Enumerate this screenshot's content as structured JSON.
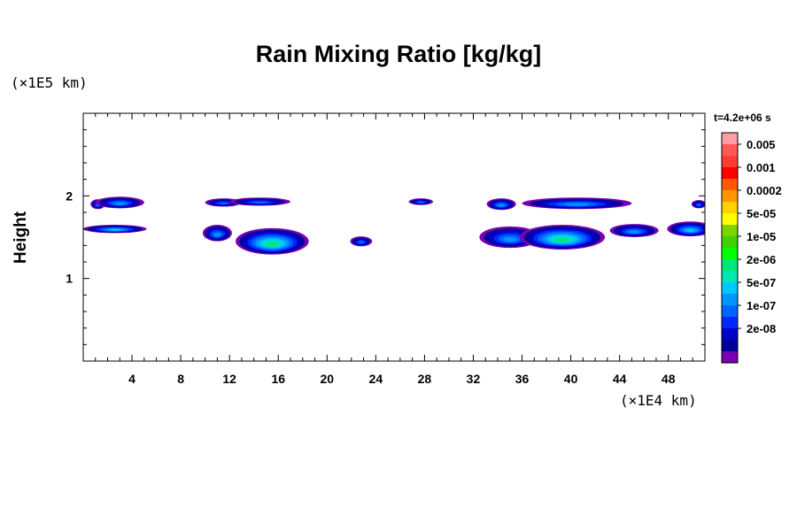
{
  "chart_data": {
    "type": "heatmap",
    "title": "Rain Mixing Ratio [kg/kg]",
    "ylabel": "Height",
    "xlabel": "",
    "x_unit": "(×1E4 km)",
    "y_unit": "(×1E5 km)",
    "time_label": "t=4.2e+06 s",
    "xlim": [
      0,
      51
    ],
    "ylim": [
      0,
      3
    ],
    "x_ticks": [
      4,
      8,
      12,
      16,
      20,
      24,
      28,
      32,
      36,
      40,
      44,
      48
    ],
    "y_ticks": [
      1,
      2
    ],
    "colorbar": {
      "levels": [
        "0.005",
        "0.001",
        "0.0002",
        "5e-05",
        "1e-05",
        "2e-06",
        "5e-07",
        "1e-07",
        "2e-08"
      ],
      "colors_top_to_bottom": [
        "#ff9da3",
        "#ff5858",
        "#ff3c32",
        "#ff0000",
        "#ff5a00",
        "#ff9600",
        "#ffd200",
        "#ffff00",
        "#7fd200",
        "#3fd200",
        "#00ff00",
        "#00e678",
        "#00e6b4",
        "#00c8ff",
        "#0096ff",
        "#0064ff",
        "#0028ff",
        "#0000c8",
        "#000096",
        "#7800b4"
      ]
    },
    "regions": [
      {
        "x": 1.2,
        "y": 1.9,
        "rx": 0.6,
        "ry": 0.06,
        "level": 4
      },
      {
        "x": 3.0,
        "y": 1.92,
        "rx": 2.0,
        "ry": 0.07,
        "level": 5
      },
      {
        "x": 2.6,
        "y": 1.6,
        "rx": 2.6,
        "ry": 0.05,
        "level": 6
      },
      {
        "x": 11.5,
        "y": 1.92,
        "rx": 1.5,
        "ry": 0.05,
        "level": 4
      },
      {
        "x": 14.5,
        "y": 1.93,
        "rx": 2.5,
        "ry": 0.05,
        "level": 4
      },
      {
        "x": 11.0,
        "y": 1.55,
        "rx": 1.2,
        "ry": 0.1,
        "level": 5
      },
      {
        "x": 15.5,
        "y": 1.45,
        "rx": 3.0,
        "ry": 0.16,
        "level": 8
      },
      {
        "x": 22.8,
        "y": 1.45,
        "rx": 0.9,
        "ry": 0.06,
        "level": 4
      },
      {
        "x": 27.7,
        "y": 1.93,
        "rx": 1.0,
        "ry": 0.04,
        "level": 4
      },
      {
        "x": 34.3,
        "y": 1.9,
        "rx": 1.2,
        "ry": 0.07,
        "level": 5
      },
      {
        "x": 40.5,
        "y": 1.91,
        "rx": 4.5,
        "ry": 0.07,
        "level": 5
      },
      {
        "x": 35.0,
        "y": 1.5,
        "rx": 2.5,
        "ry": 0.13,
        "level": 5
      },
      {
        "x": 39.3,
        "y": 1.5,
        "rx": 3.5,
        "ry": 0.15,
        "level": 8
      },
      {
        "x": 45.2,
        "y": 1.58,
        "rx": 2.0,
        "ry": 0.08,
        "level": 5
      },
      {
        "x": 49.8,
        "y": 1.6,
        "rx": 1.9,
        "ry": 0.09,
        "level": 6
      },
      {
        "x": 50.5,
        "y": 1.9,
        "rx": 0.6,
        "ry": 0.05,
        "level": 4
      }
    ]
  }
}
